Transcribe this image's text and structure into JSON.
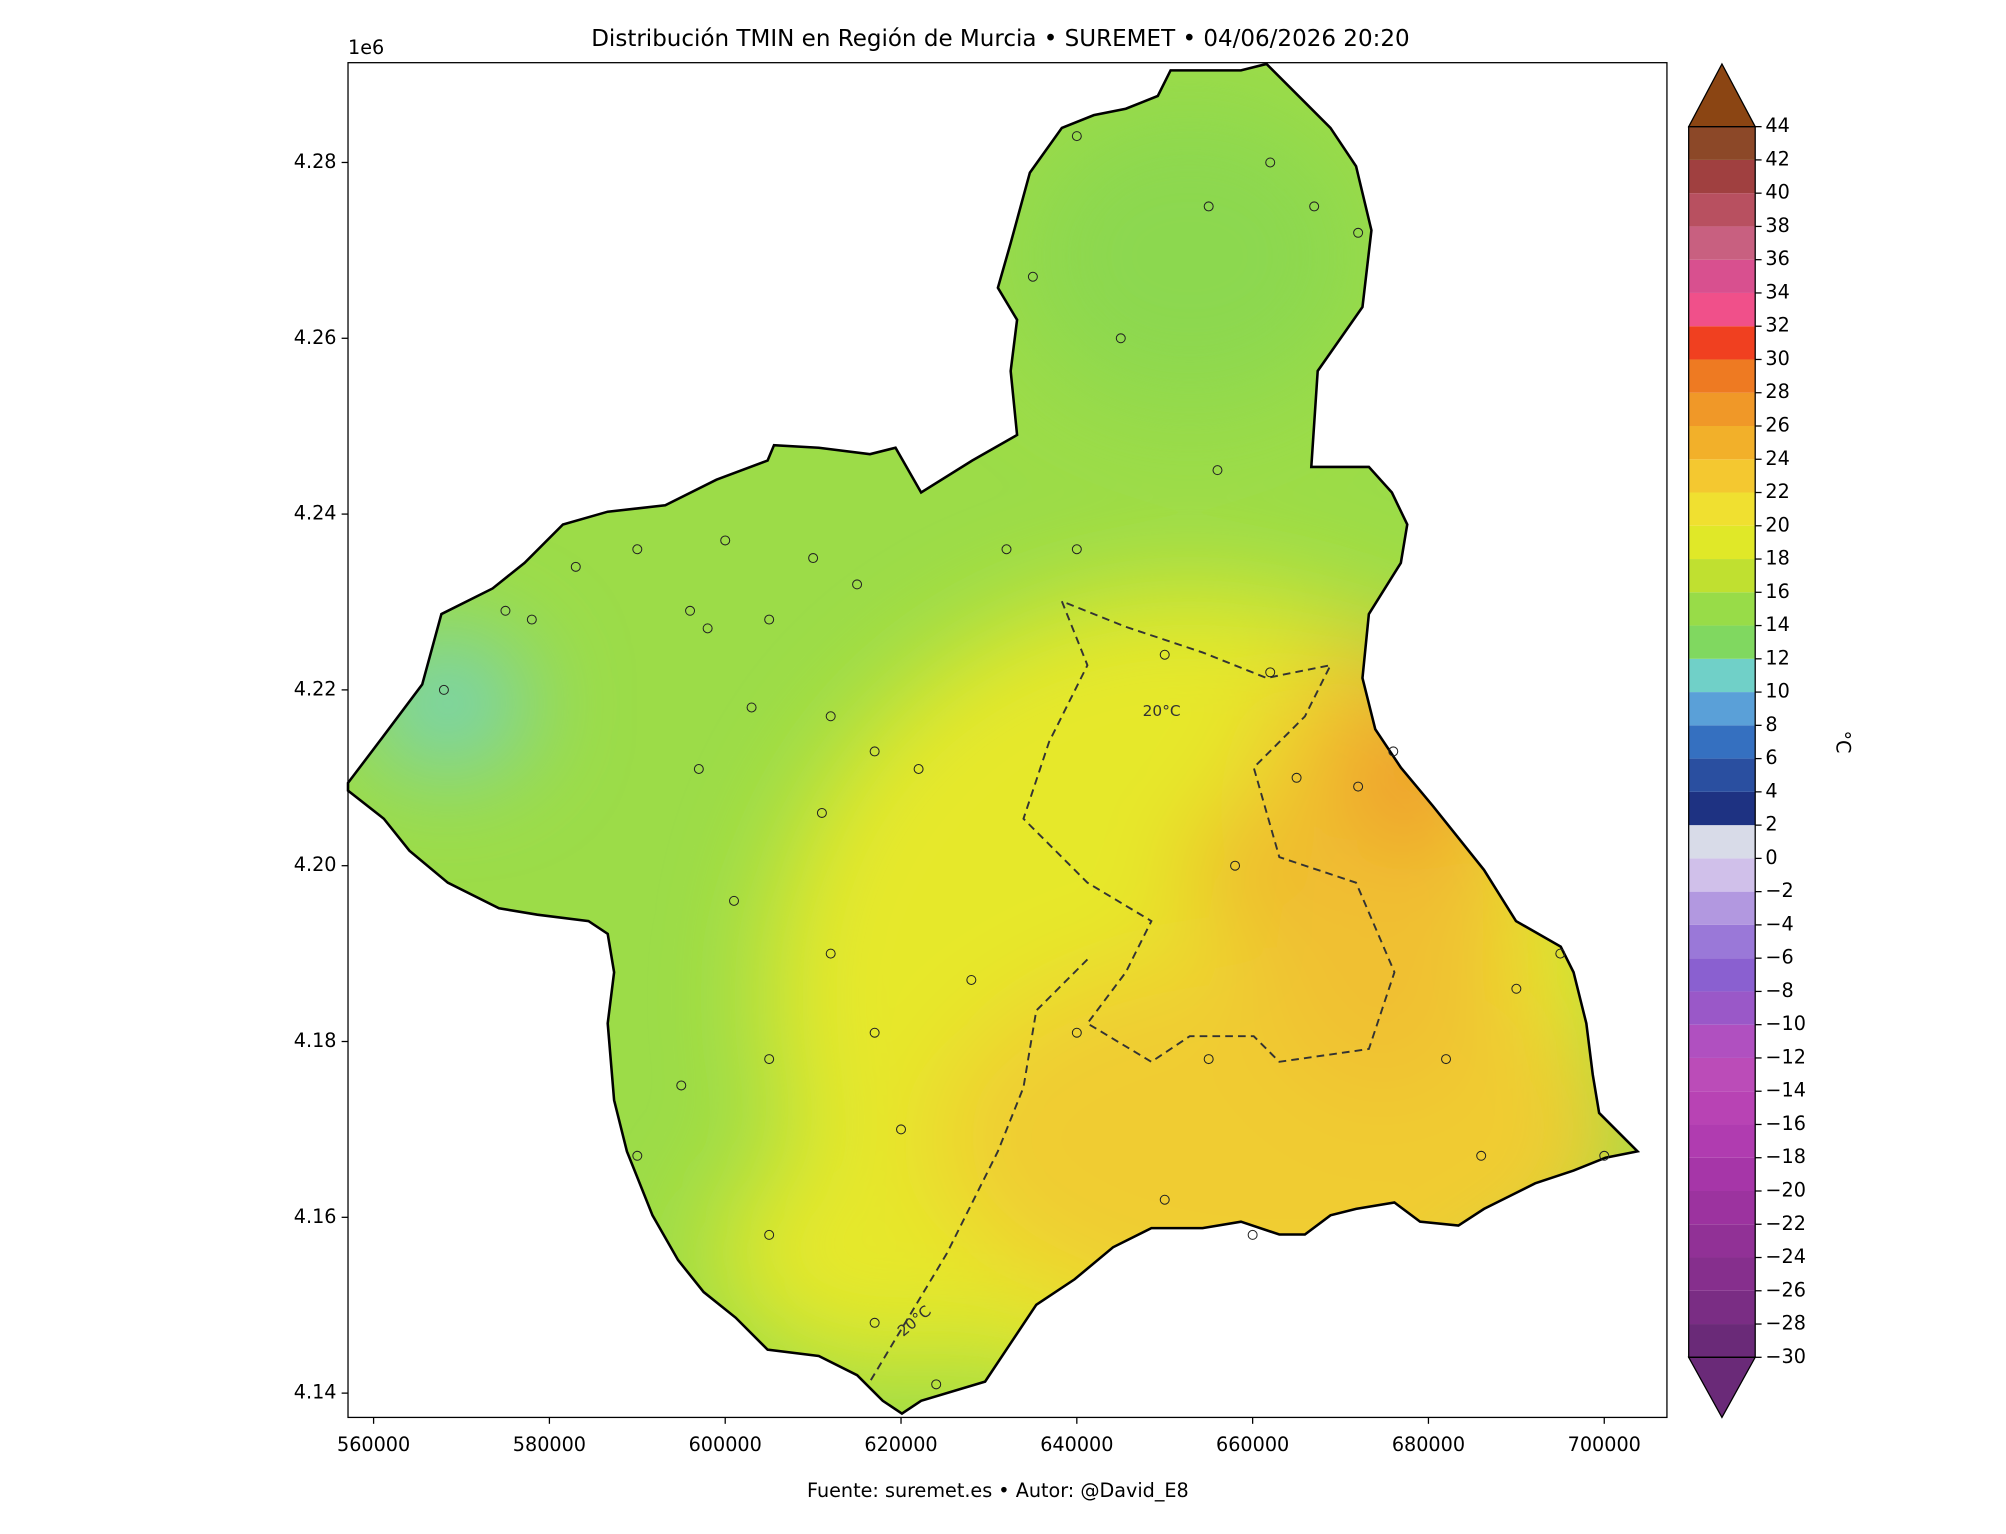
{
  "chart_data": {
    "type": "contour_map",
    "title": "Distribución TMIN en Región de Murcia • SUREMET • 04/06/2026 20:20",
    "footer": "Fuente: suremet.es   •   Autor: @David_E8",
    "y_offset_label": "1e6",
    "xlim": [
      557090,
      707131
    ],
    "ylim": [
      4137235,
      4291352
    ],
    "xticks": [
      560000,
      580000,
      600000,
      620000,
      640000,
      660000,
      680000,
      700000
    ],
    "yticks": [
      {
        "value": 4140000,
        "label": "4.14"
      },
      {
        "value": 4160000,
        "label": "4.16"
      },
      {
        "value": 4180000,
        "label": "4.18"
      },
      {
        "value": 4200000,
        "label": "4.20"
      },
      {
        "value": 4220000,
        "label": "4.22"
      },
      {
        "value": 4240000,
        "label": "4.24"
      },
      {
        "value": 4260000,
        "label": "4.26"
      },
      {
        "value": 4280000,
        "label": "4.28"
      }
    ],
    "contour_labels": [
      "20°C",
      "20°C"
    ],
    "stations": {
      "x": [
        568000,
        575000,
        578000,
        583000,
        590000,
        596000,
        598000,
        605000,
        600000,
        610000,
        615000,
        603000,
        612000,
        617000,
        622000,
        611000,
        597000,
        601000,
        612000,
        617000,
        605000,
        595000,
        590000,
        620000,
        640000,
        655000,
        658000,
        665000,
        672000,
        676000,
        682000,
        690000,
        695000,
        700000,
        686000,
        662000,
        650000,
        640000,
        645000,
        655000,
        662000,
        667000,
        672000,
        640000,
        635000,
        656000,
        660000,
        650000,
        624000,
        617000,
        605000,
        632000,
        628000
      ],
      "y": [
        4220000,
        4229000,
        4228000,
        4234000,
        4236000,
        4229000,
        4227000,
        4228000,
        4237000,
        4235000,
        4232000,
        4218000,
        4217000,
        4213000,
        4211000,
        4206000,
        4211000,
        4196000,
        4190000,
        4181000,
        4178000,
        4175000,
        4167000,
        4170000,
        4181000,
        4178000,
        4200000,
        4210000,
        4209000,
        4213000,
        4178000,
        4186000,
        4190000,
        4167000,
        4167000,
        4222000,
        4224000,
        4236000,
        4260000,
        4275000,
        4280000,
        4275000,
        4272000,
        4283000,
        4267000,
        4245000,
        4158000,
        4162000,
        4141000,
        4148000,
        4158000,
        4236000,
        4187000
      ]
    },
    "colorbar": {
      "label": "°C",
      "lim": [
        -30,
        44
      ],
      "ticks": [
        {
          "value": -30,
          "label": "−30"
        },
        {
          "value": -28,
          "label": "−28"
        },
        {
          "value": -26,
          "label": "−26"
        },
        {
          "value": -24,
          "label": "−24"
        },
        {
          "value": -22,
          "label": "−22"
        },
        {
          "value": -20,
          "label": "−20"
        },
        {
          "value": -18,
          "label": "−18"
        },
        {
          "value": -16,
          "label": "−16"
        },
        {
          "value": -14,
          "label": "−14"
        },
        {
          "value": -12,
          "label": "−12"
        },
        {
          "value": -10,
          "label": "−10"
        },
        {
          "value": -8,
          "label": "−8"
        },
        {
          "value": -6,
          "label": "−6"
        },
        {
          "value": -4,
          "label": "−4"
        },
        {
          "value": -2,
          "label": "−2"
        },
        0,
        2,
        4,
        6,
        8,
        10,
        12,
        14,
        16,
        18,
        20,
        22,
        24,
        26,
        28,
        30,
        32,
        34,
        36,
        38,
        40,
        42,
        44
      ],
      "colors": [
        "#6a2a78",
        "#7a2d84",
        "#862f8d",
        "#913196",
        "#9c339f",
        "#a636a8",
        "#b03cb0",
        "#b843b4",
        "#bb4cb8",
        "#b050c0",
        "#9a58c8",
        "#8a60d0",
        "#9a78d8",
        "#b298e0",
        "#d0c0ea",
        "#d8dbe8",
        "#1e3282",
        "#2a4fa0",
        "#3570c0",
        "#5aa0d8",
        "#70d0c8",
        "#80d860",
        "#98dc48",
        "#c0e030",
        "#e0e828",
        "#f0e030",
        "#f4c830",
        "#f2b02a",
        "#f09828",
        "#ee7a22",
        "#f04020",
        "#f0508a",
        "#d8508f",
        "#c86080",
        "#b85060",
        "#a04040",
        "#8c4828"
      ],
      "under_color": "#6a2a78",
      "over_color": "#8b4513"
    }
  }
}
